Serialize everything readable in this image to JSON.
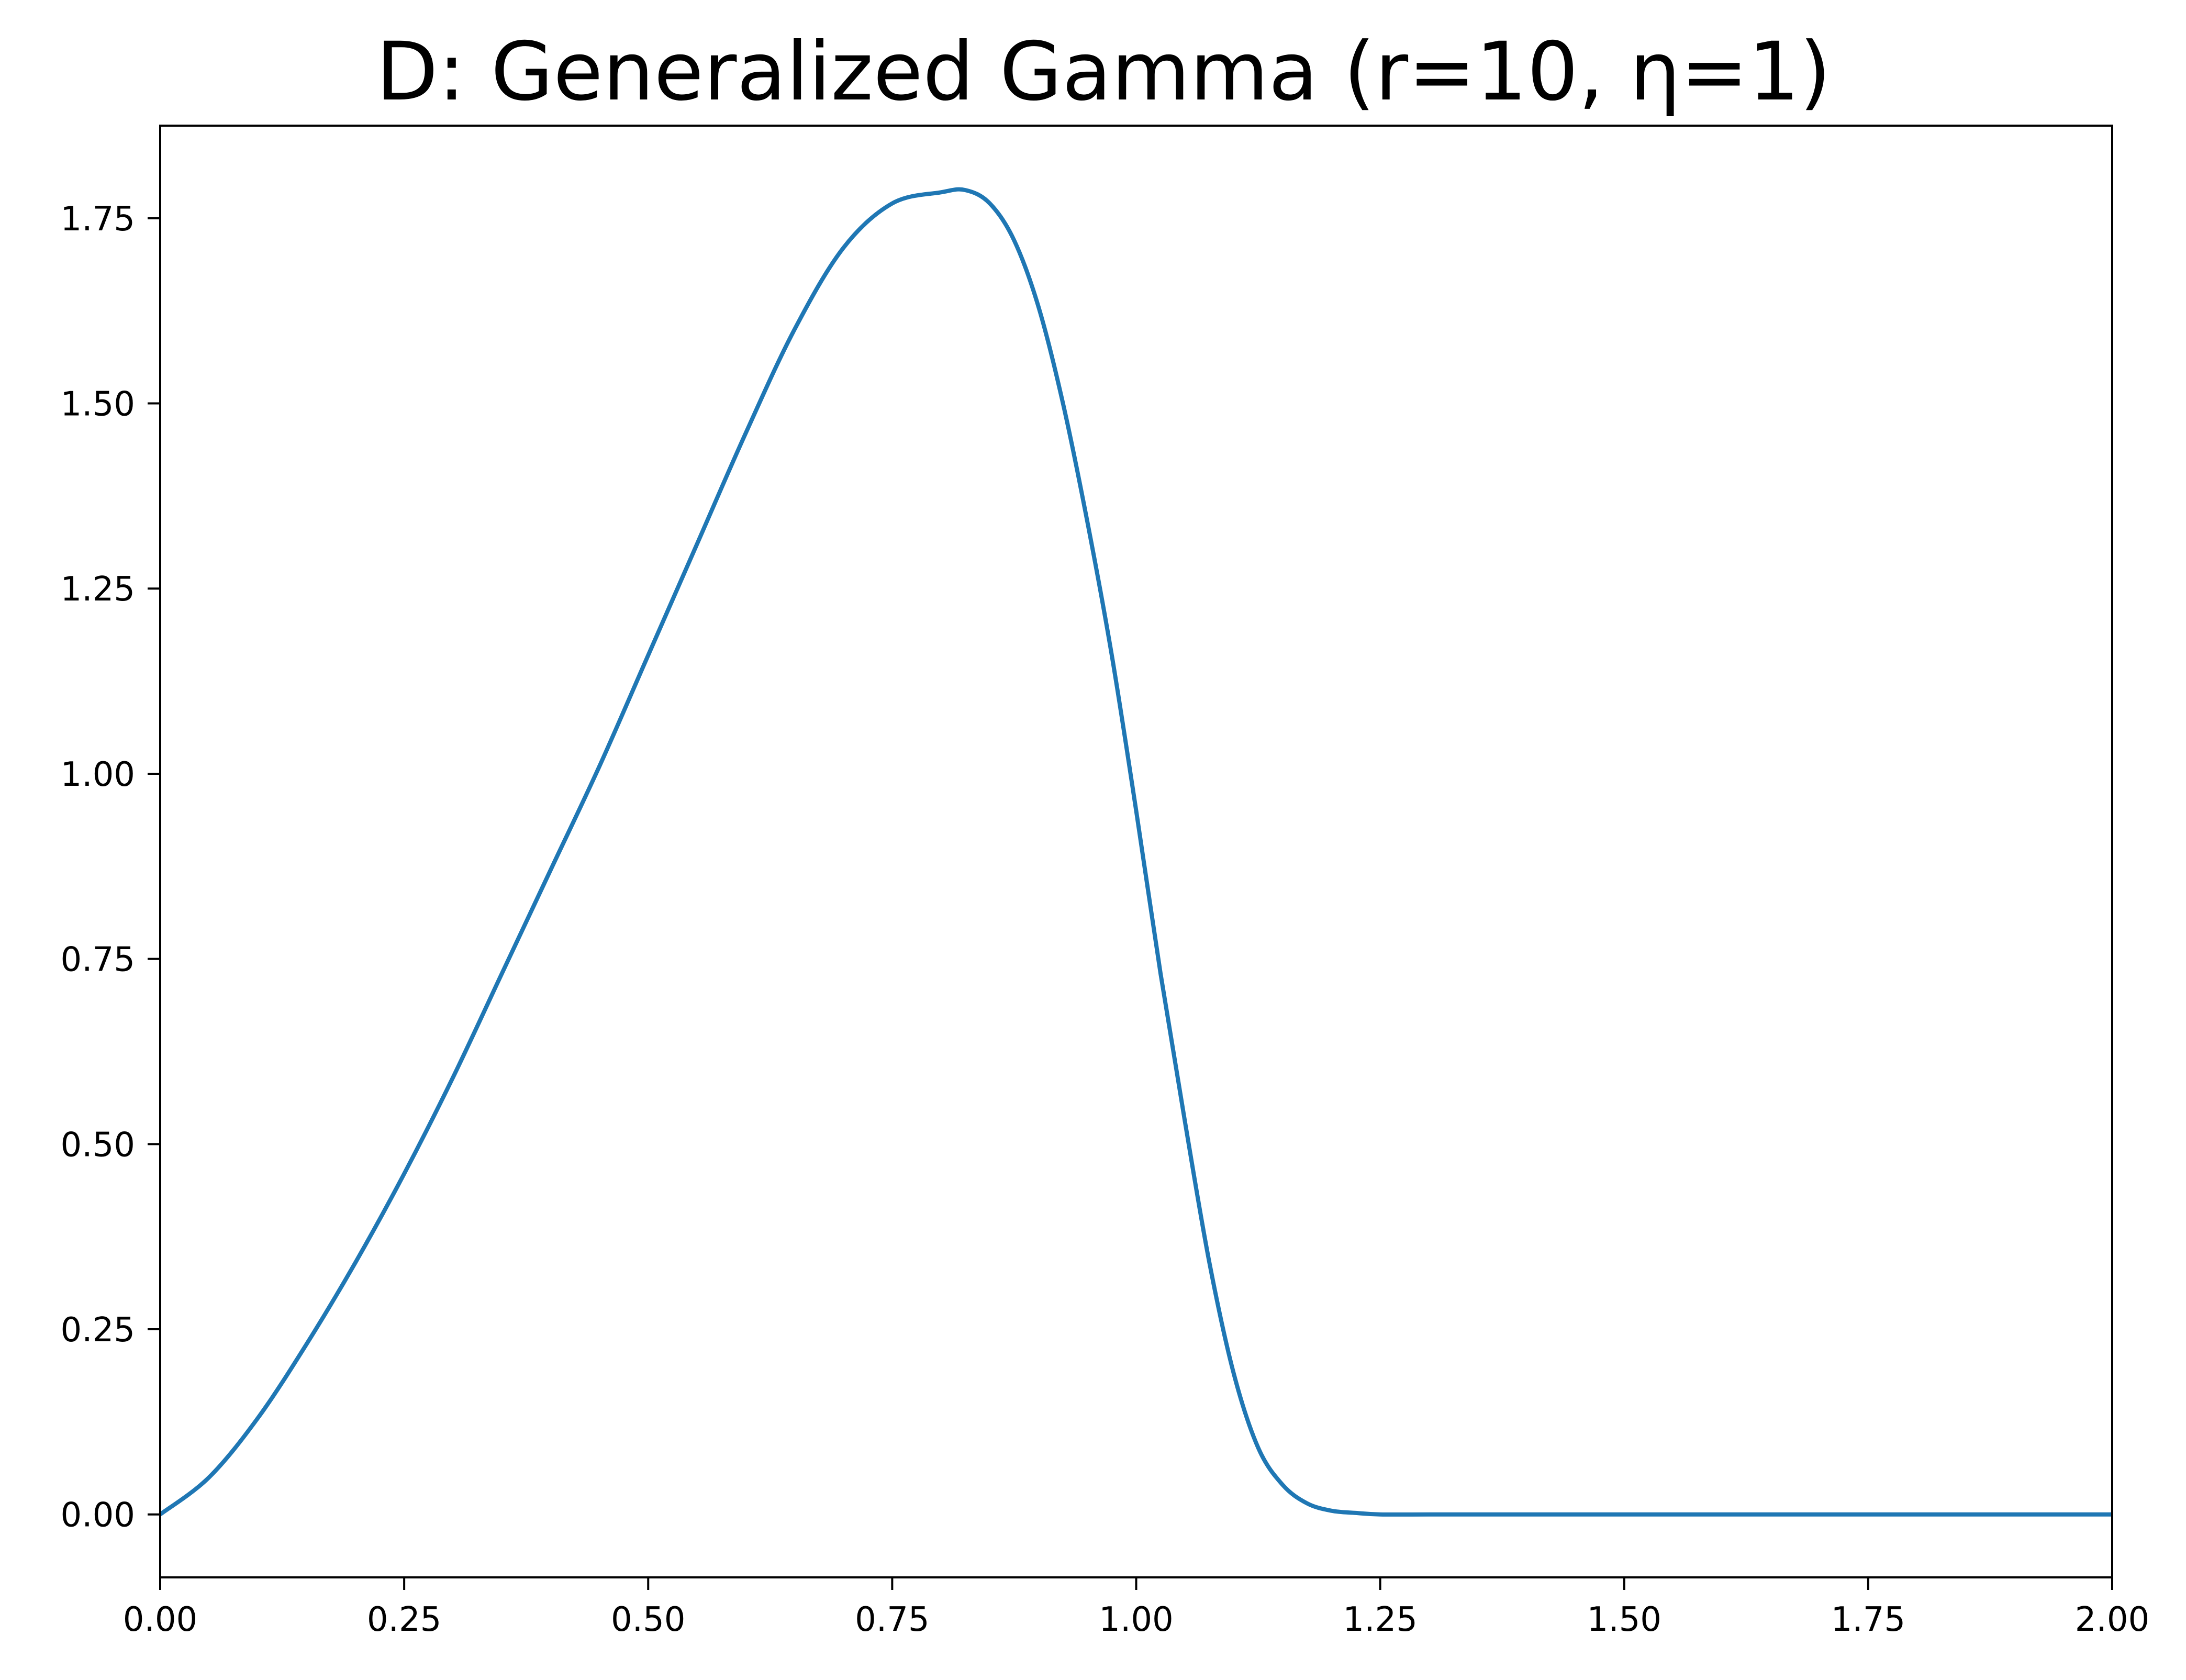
{
  "chart_data": {
    "type": "line",
    "title": "D: Generalized Gamma (r=10, η=1)",
    "xlabel": "",
    "ylabel": "",
    "xlim": [
      0,
      2
    ],
    "ylim": [
      -0.085,
      1.875
    ],
    "grid": false,
    "x_ticks": [
      {
        "value": 0.0,
        "label": "0.00"
      },
      {
        "value": 0.25,
        "label": "0.25"
      },
      {
        "value": 0.5,
        "label": "0.50"
      },
      {
        "value": 0.75,
        "label": "0.75"
      },
      {
        "value": 1.0,
        "label": "1.00"
      },
      {
        "value": 1.25,
        "label": "1.25"
      },
      {
        "value": 1.5,
        "label": "1.50"
      },
      {
        "value": 1.75,
        "label": "1.75"
      },
      {
        "value": 2.0,
        "label": "2.00"
      }
    ],
    "y_ticks": [
      {
        "value": 0.0,
        "label": "0.00"
      },
      {
        "value": 0.25,
        "label": "0.25"
      },
      {
        "value": 0.5,
        "label": "0.50"
      },
      {
        "value": 0.75,
        "label": "0.75"
      },
      {
        "value": 1.0,
        "label": "1.00"
      },
      {
        "value": 1.25,
        "label": "1.25"
      },
      {
        "value": 1.5,
        "label": "1.50"
      },
      {
        "value": 1.75,
        "label": "1.75"
      }
    ],
    "series": [
      {
        "color": "#1f77b4",
        "x": [
          0.0,
          0.05,
          0.1,
          0.15,
          0.2,
          0.25,
          0.3,
          0.35,
          0.4,
          0.45,
          0.5,
          0.55,
          0.6,
          0.65,
          0.7,
          0.75,
          0.8,
          0.825,
          0.85,
          0.875,
          0.9,
          0.925,
          0.95,
          0.975,
          1.0,
          1.025,
          1.05,
          1.075,
          1.1,
          1.125,
          1.15,
          1.175,
          1.2,
          1.225,
          1.25,
          1.3,
          1.4,
          1.5,
          1.6,
          1.7,
          1.8,
          1.9,
          2.0
        ],
        "y": [
          0.0,
          0.05,
          0.13,
          0.23,
          0.34,
          0.46,
          0.59,
          0.73,
          0.87,
          1.01,
          1.16,
          1.31,
          1.46,
          1.6,
          1.71,
          1.77,
          1.785,
          1.788,
          1.77,
          1.72,
          1.63,
          1.5,
          1.34,
          1.16,
          0.95,
          0.73,
          0.53,
          0.34,
          0.19,
          0.09,
          0.04,
          0.015,
          0.005,
          0.002,
          0.0,
          0.0,
          0.0,
          0.0,
          0.0,
          0.0,
          0.0,
          0.0,
          0.0
        ]
      }
    ]
  }
}
